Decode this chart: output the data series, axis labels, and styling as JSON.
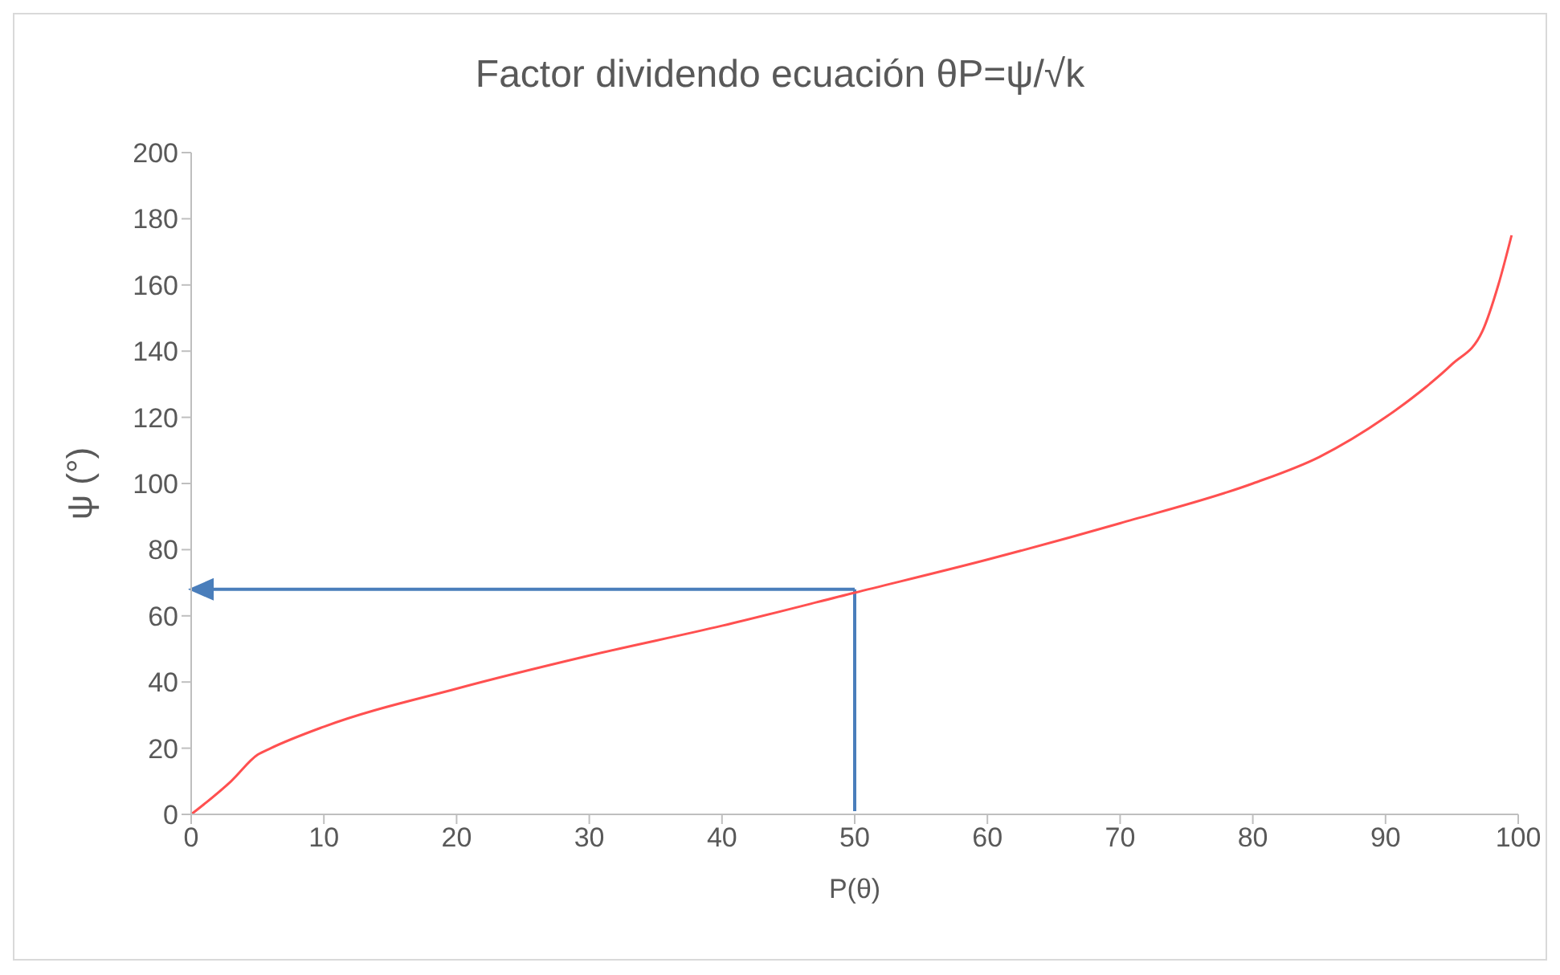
{
  "chart_data": {
    "type": "line",
    "title": "Factor dividendo ecuación  θP=ψ/√k",
    "xlabel": "P(θ)",
    "ylabel": "ψ (°)",
    "xlim": [
      0,
      100
    ],
    "xticks": [
      0,
      10,
      20,
      30,
      40,
      50,
      60,
      70,
      80,
      90,
      100
    ],
    "ylim": [
      0,
      200
    ],
    "yticks": [
      0,
      20,
      40,
      60,
      80,
      100,
      120,
      140,
      160,
      180,
      200
    ],
    "marker": "none",
    "ref_lines": [
      {
        "axis": "x",
        "value": 50,
        "color": "#4a7ebb"
      },
      {
        "axis": "y",
        "value": 68,
        "color": "#4a7ebb"
      }
    ],
    "series": [
      {
        "type": "line",
        "color": "#ff5050",
        "x": [
          0,
          3,
          5,
          6,
          10,
          20,
          30,
          40,
          50,
          60,
          70,
          80,
          85,
          90,
          93,
          95,
          97.3,
          98.5,
          99.5
        ],
        "values": [
          0,
          10,
          18,
          20,
          26.5,
          38,
          48,
          57,
          67,
          77,
          88,
          100,
          108,
          120,
          129,
          136,
          146,
          160,
          175
        ]
      }
    ]
  }
}
